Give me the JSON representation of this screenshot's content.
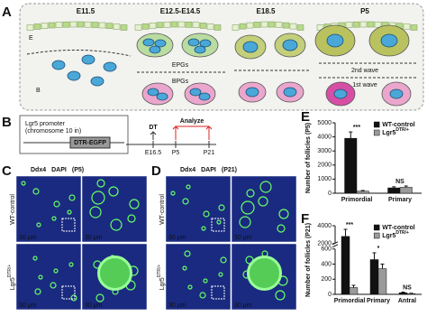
{
  "figure": {
    "panel_labels": [
      "A",
      "B",
      "C",
      "D",
      "E",
      "F"
    ],
    "diagram_a": {
      "stages": [
        "E11.5",
        "E12.5-E14.5",
        "E18.5",
        "P5"
      ],
      "epithelium": "E",
      "cells": "B",
      "epgs": "EPGs",
      "bpgs": "BPGs",
      "second_wave": "2nd wave",
      "first_wave": "1st wave"
    },
    "diagram_b": {
      "promoter": "Lgr5 promoter",
      "chromosome": "(chromosome 10 in)",
      "construct": "DTR-EGFP",
      "treatment": "DT",
      "analyze": "Analyze",
      "timepoints": [
        "E16.5",
        "P5",
        "P21"
      ]
    },
    "micrographs": [
      {
        "markers": [
          "Ddx4",
          "DAPI",
          "(P5)"
        ],
        "row_labels": [
          {
            "text": "WT-control"
          },
          {
            "text": "Lgr5",
            "sup": "DTR/+"
          }
        ],
        "scale_bars": [
          "30 μm",
          "30 μm",
          "30 μm",
          "30 μm"
        ]
      },
      {
        "markers": [
          "Ddx4",
          "DAPI",
          "(P21)"
        ],
        "row_labels": [
          {
            "text": "WT-control"
          },
          {
            "text": "Lgr5",
            "sup": "DTR/+"
          }
        ],
        "scale_bars": [
          "30 μm",
          "30 μm",
          "30 μm",
          "30 μm"
        ]
      }
    ]
  },
  "chart_data": [
    {
      "type": "bar",
      "y_label": "Number of follicles (P5)",
      "categories": [
        "Primordial",
        "Primary"
      ],
      "series": [
        {
          "name": "WT-control",
          "color": "#111111",
          "values": [
            3900,
            380
          ],
          "errors": [
            450,
            80
          ]
        },
        {
          "name": "Lgr5",
          "name_sup": "DTR/+",
          "color": "#9a9a9a",
          "values": [
            150,
            420
          ],
          "errors": [
            40,
            90
          ]
        }
      ],
      "significance": [
        "***",
        "NS"
      ],
      "ylim": [
        0,
        5000
      ],
      "yticks": [
        0,
        1000,
        2000,
        3000,
        4000,
        5000
      ]
    },
    {
      "type": "bar",
      "y_label": "Number of follicles (P21)",
      "categories": [
        "Primordial",
        "Primary",
        "Antral"
      ],
      "series": [
        {
          "name": "WT-control",
          "color": "#111111",
          "values": [
            2800,
            460,
            20
          ],
          "errors": [
            800,
            90,
            10
          ]
        },
        {
          "name": "Lgr5",
          "name_sup": "DTR/+",
          "color": "#9a9a9a",
          "values": [
            90,
            340,
            10
          ],
          "errors": [
            30,
            60,
            5
          ]
        }
      ],
      "significance": [
        "***",
        "*",
        "NS"
      ],
      "ylim": [
        0,
        4000
      ],
      "axis_break": [
        600,
        2000
      ],
      "yticks": [
        0,
        200,
        400,
        600,
        2000,
        4000
      ]
    }
  ]
}
